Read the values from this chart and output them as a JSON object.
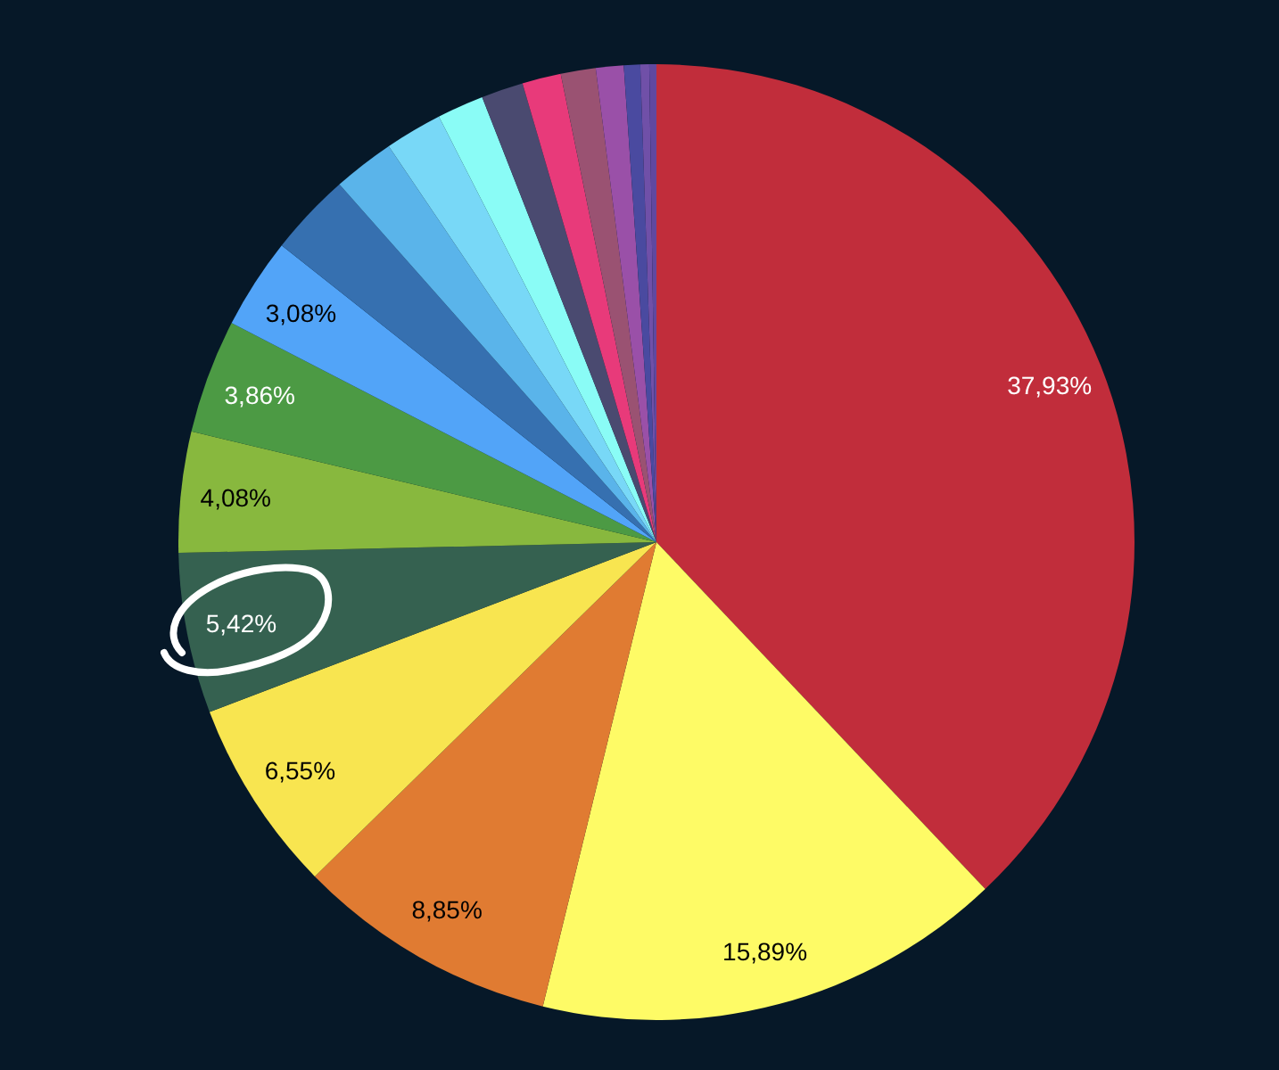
{
  "chart_data": {
    "type": "pie",
    "categories": [
      null,
      null,
      null,
      null,
      null,
      null,
      null,
      null,
      null,
      null,
      null,
      null,
      null,
      null,
      null,
      null,
      null,
      null,
      null
    ],
    "values": [
      37.93,
      15.89,
      8.85,
      6.55,
      5.42,
      4.08,
      3.86,
      3.08,
      2.8,
      2.08,
      1.94,
      1.58,
      1.42,
      1.31,
      1.18,
      0.94,
      0.55,
      0.3,
      0.24
    ],
    "colors": [
      "#c12d3b",
      "#fefb66",
      "#e07b32",
      "#f8e550",
      "#356150",
      "#88b83e",
      "#4c9a44",
      "#52a4f8",
      "#3670b0",
      "#5ab4ea",
      "#78d8f7",
      "#8afcf6",
      "#4a4a70",
      "#e83a7a",
      "#9a5272",
      "#9a50a8",
      "#4a4aa0",
      "#7050a8",
      "#6048a0"
    ],
    "value_labels": [
      "37,93%",
      "15,89%",
      "8,85%",
      "6,55%",
      "5,42%",
      "4,08%",
      "3,86%",
      "3,08%",
      null,
      null,
      null,
      null,
      null,
      null,
      null,
      null,
      null,
      null,
      null
    ]
  }
}
